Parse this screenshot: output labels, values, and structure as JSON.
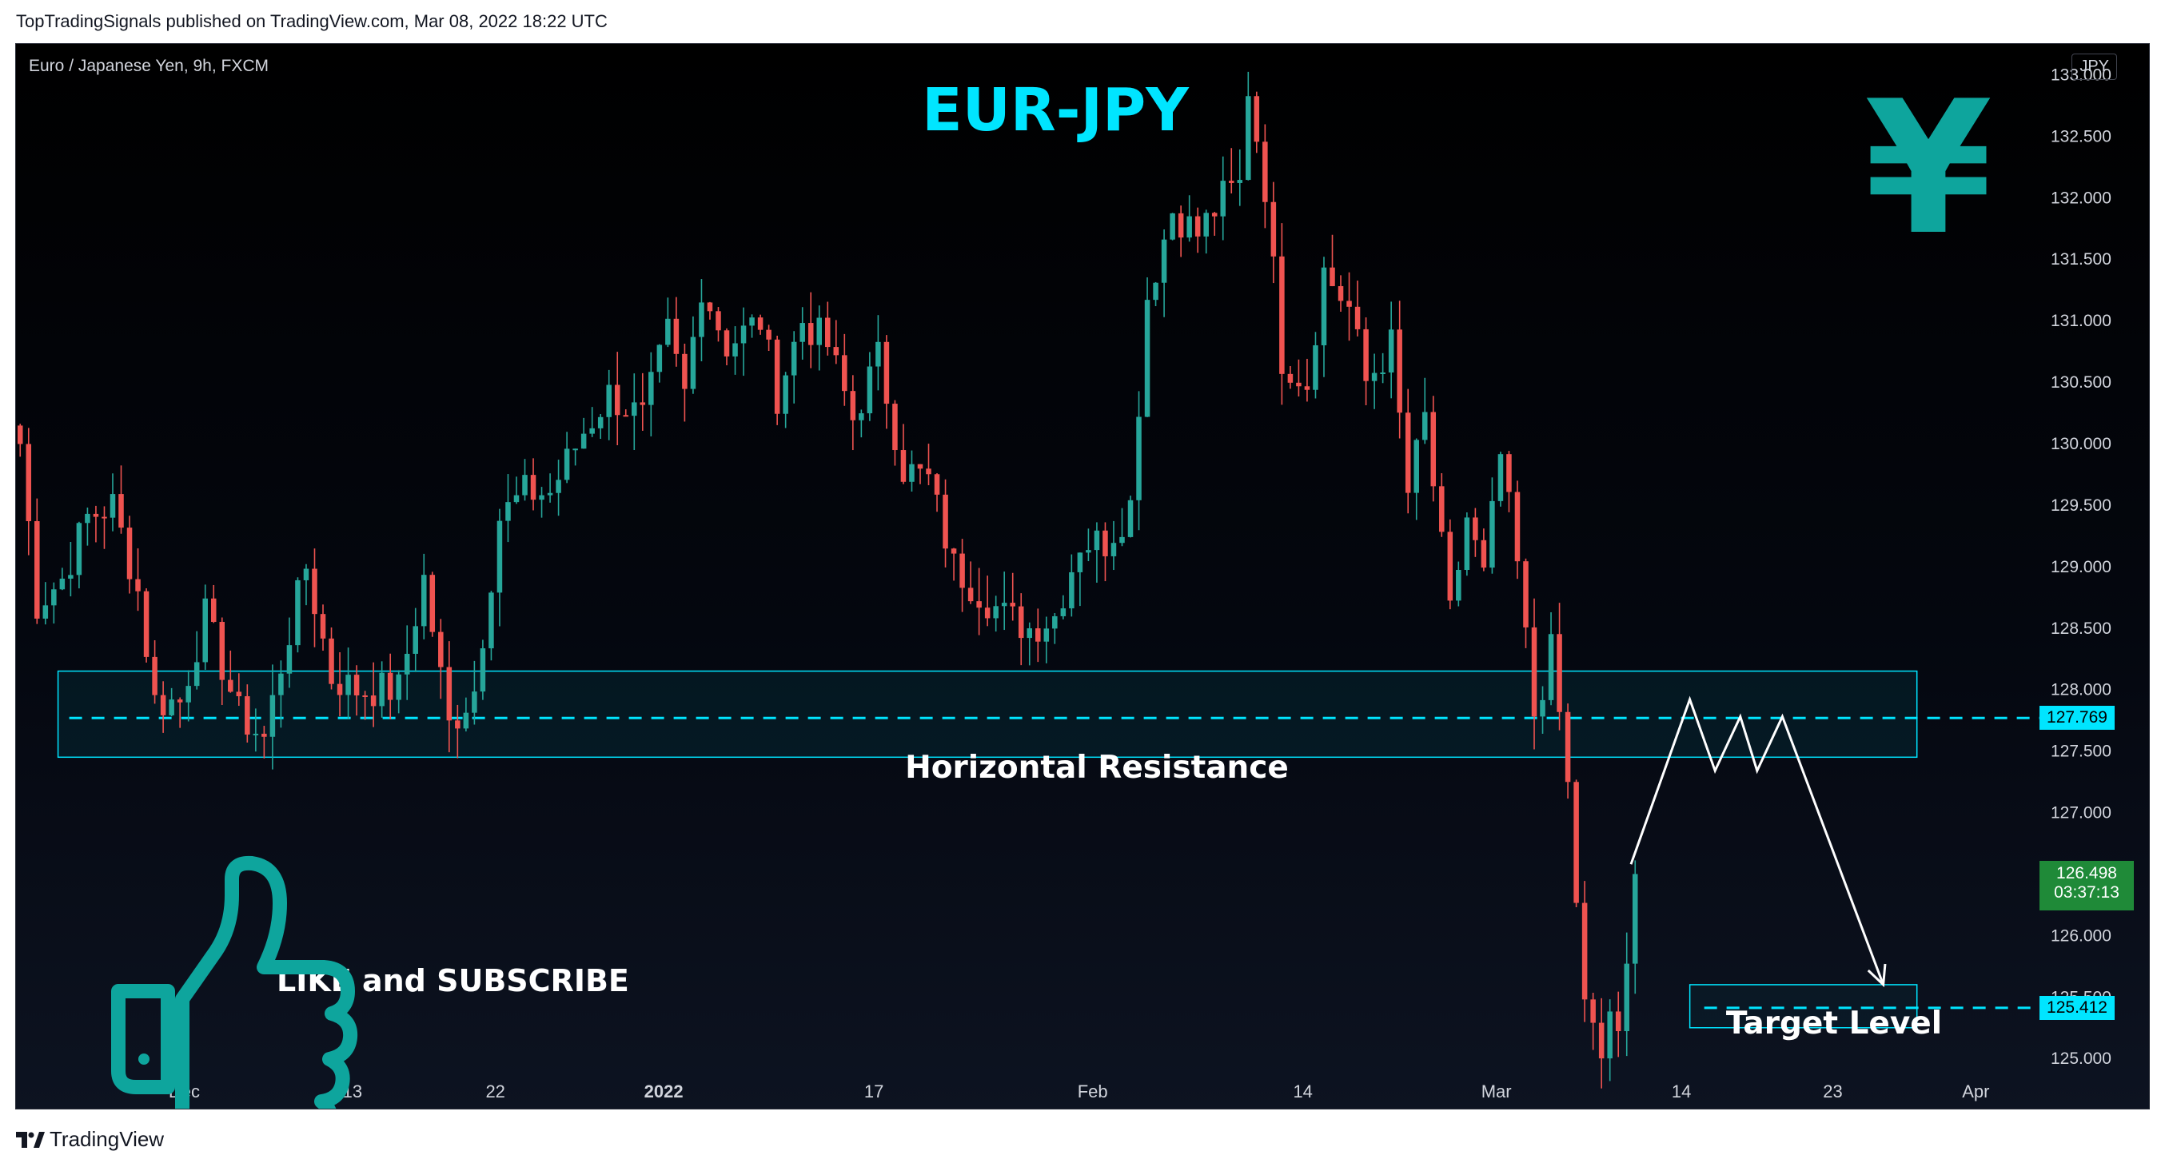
{
  "header": {
    "publish_line": "TopTradingSignals published on TradingView.com, Mar 08, 2022 18:22 UTC"
  },
  "footer": {
    "brand": "TradingView",
    "logo_icon": "tradingview-logo-icon"
  },
  "colors": {
    "up": "#26a69a",
    "down": "#ef5350",
    "cyan": "#00e5ff",
    "teal_icon": "#0ea59d",
    "current_price_bg": "#1f8a38"
  },
  "chart_data": {
    "type": "candlestick",
    "symbol_info": "Euro / Japanese Yen, 9h, FXCM",
    "currency": "JPY",
    "title": "EUR-JPY",
    "ylim": [
      124.8,
      133.25
    ],
    "y_ticks": [
      "125.000",
      "125.500",
      "126.000",
      "126.500",
      "127.000",
      "127.500",
      "128.000",
      "128.500",
      "129.000",
      "129.500",
      "130.000",
      "130.500",
      "131.000",
      "131.500",
      "132.000",
      "132.500",
      "133.000"
    ],
    "x_ticks": [
      "Dec",
      "13",
      "22",
      "2022",
      "17",
      "Feb",
      "14",
      "Mar",
      "14",
      "23",
      "Apr"
    ],
    "x_tick_bars": [
      20,
      40,
      57,
      77,
      102,
      128,
      153,
      176,
      198,
      216,
      233
    ],
    "bars_in_view": 240,
    "close_path": [
      {
        "bar": 0,
        "price": 130.0
      },
      {
        "bar": 2,
        "price": 128.7
      },
      {
        "bar": 5,
        "price": 128.9
      },
      {
        "bar": 8,
        "price": 129.4
      },
      {
        "bar": 11,
        "price": 129.5
      },
      {
        "bar": 14,
        "price": 128.8
      },
      {
        "bar": 16,
        "price": 127.9
      },
      {
        "bar": 19,
        "price": 127.9
      },
      {
        "bar": 22,
        "price": 128.6
      },
      {
        "bar": 26,
        "price": 127.8
      },
      {
        "bar": 29,
        "price": 127.6
      },
      {
        "bar": 31,
        "price": 128.2
      },
      {
        "bar": 34,
        "price": 129.0
      },
      {
        "bar": 37,
        "price": 128.1
      },
      {
        "bar": 40,
        "price": 128.0
      },
      {
        "bar": 45,
        "price": 128.0
      },
      {
        "bar": 48,
        "price": 128.9
      },
      {
        "bar": 51,
        "price": 127.7
      },
      {
        "bar": 54,
        "price": 128.0
      },
      {
        "bar": 57,
        "price": 129.4
      },
      {
        "bar": 60,
        "price": 129.6
      },
      {
        "bar": 63,
        "price": 129.6
      },
      {
        "bar": 67,
        "price": 130.1
      },
      {
        "bar": 70,
        "price": 130.4
      },
      {
        "bar": 74,
        "price": 130.2
      },
      {
        "bar": 77,
        "price": 130.9
      },
      {
        "bar": 79,
        "price": 130.4
      },
      {
        "bar": 81,
        "price": 131.3
      },
      {
        "bar": 84,
        "price": 130.8
      },
      {
        "bar": 88,
        "price": 131.0
      },
      {
        "bar": 90,
        "price": 130.4
      },
      {
        "bar": 93,
        "price": 131.0
      },
      {
        "bar": 96,
        "price": 130.8
      },
      {
        "bar": 99,
        "price": 130.2
      },
      {
        "bar": 102,
        "price": 130.7
      },
      {
        "bar": 105,
        "price": 129.8
      },
      {
        "bar": 108,
        "price": 129.7
      },
      {
        "bar": 111,
        "price": 129.0
      },
      {
        "bar": 114,
        "price": 128.8
      },
      {
        "bar": 117,
        "price": 128.6
      },
      {
        "bar": 120,
        "price": 128.5
      },
      {
        "bar": 123,
        "price": 128.6
      },
      {
        "bar": 126,
        "price": 129.2
      },
      {
        "bar": 129,
        "price": 129.2
      },
      {
        "bar": 132,
        "price": 129.5
      },
      {
        "bar": 134,
        "price": 131.2
      },
      {
        "bar": 137,
        "price": 131.9
      },
      {
        "bar": 140,
        "price": 131.7
      },
      {
        "bar": 143,
        "price": 132.0
      },
      {
        "bar": 145,
        "price": 132.1
      },
      {
        "bar": 146,
        "price": 132.9
      },
      {
        "bar": 148,
        "price": 132.1
      },
      {
        "bar": 150,
        "price": 130.7
      },
      {
        "bar": 153,
        "price": 130.5
      },
      {
        "bar": 155,
        "price": 131.4
      },
      {
        "bar": 158,
        "price": 131.1
      },
      {
        "bar": 160,
        "price": 130.5
      },
      {
        "bar": 163,
        "price": 130.8
      },
      {
        "bar": 165,
        "price": 129.6
      },
      {
        "bar": 167,
        "price": 130.2
      },
      {
        "bar": 170,
        "price": 128.6
      },
      {
        "bar": 172,
        "price": 129.4
      },
      {
        "bar": 174,
        "price": 128.9
      },
      {
        "bar": 176,
        "price": 129.9
      },
      {
        "bar": 178,
        "price": 129.0
      },
      {
        "bar": 180,
        "price": 127.8
      },
      {
        "bar": 182,
        "price": 128.3
      },
      {
        "bar": 183,
        "price": 127.8
      },
      {
        "bar": 184,
        "price": 127.2
      },
      {
        "bar": 186,
        "price": 125.4
      },
      {
        "bar": 188,
        "price": 125.0
      },
      {
        "bar": 189,
        "price": 125.4
      },
      {
        "bar": 190,
        "price": 125.1
      },
      {
        "bar": 191,
        "price": 125.7
      },
      {
        "bar": 192,
        "price": 126.5
      }
    ],
    "zones": [
      {
        "name": "Horizontal Resistance",
        "top": 128.15,
        "bottom": 127.45,
        "level": 127.769,
        "bar_start": 5,
        "bar_end": 226
      },
      {
        "name": "Target Level",
        "top": 125.6,
        "bottom": 125.25,
        "level": 125.412,
        "bar_start": 199,
        "bar_end": 226
      }
    ],
    "projection": [
      {
        "bar": 192,
        "price": 126.58
      },
      {
        "bar": 199,
        "price": 127.92
      },
      {
        "bar": 202,
        "price": 127.34
      },
      {
        "bar": 205,
        "price": 127.78
      },
      {
        "bar": 207,
        "price": 127.34
      },
      {
        "bar": 210,
        "price": 127.78
      },
      {
        "bar": 222,
        "price": 125.6
      }
    ],
    "annotations": {
      "resistance_label": "Horizontal Resistance",
      "target_label": "Target Level",
      "cta_label": "LIKE and SUBSCRIBE",
      "cta_icon": "thumbs-up-icon",
      "currency_icon": "yen-icon",
      "yen_glyph": "¥"
    },
    "price_tags": {
      "resistance_level": "127.769",
      "target_level": "125.412",
      "current_price": "126.498",
      "countdown": "03:37:13"
    },
    "grid": false
  }
}
